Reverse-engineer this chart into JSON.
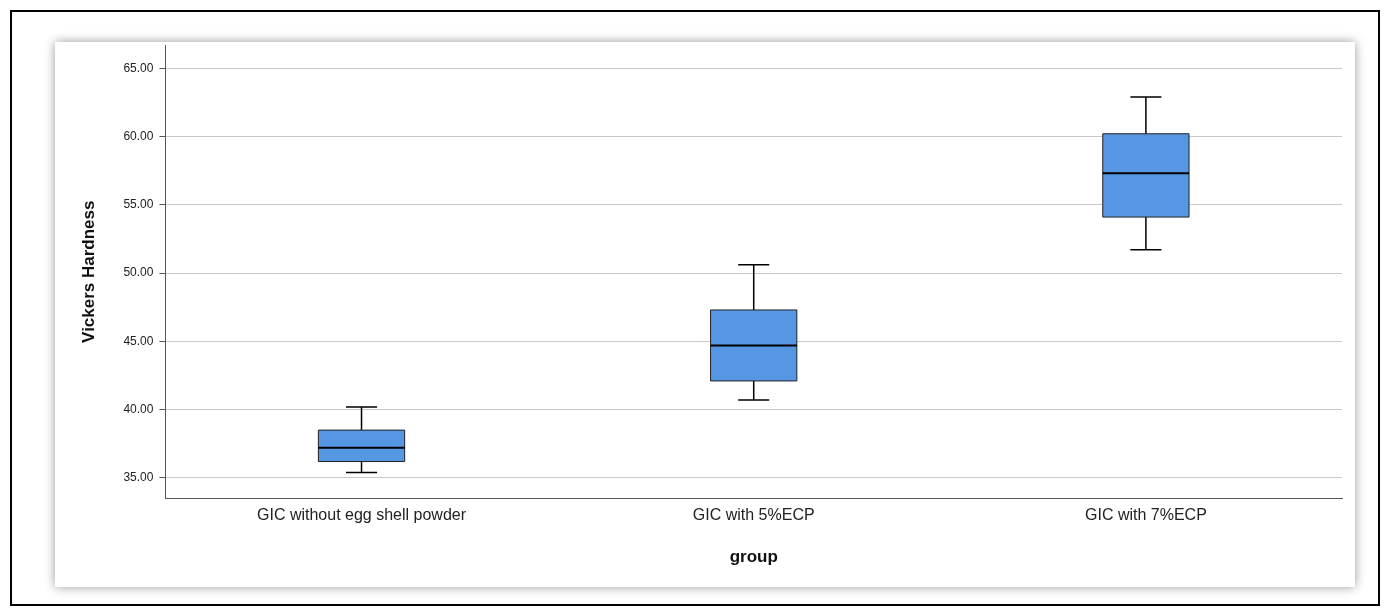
{
  "chart_data": {
    "type": "box",
    "xlabel": "group",
    "ylabel": "Vickers Hardness",
    "categories": [
      "GIC without egg shell powder",
      "GIC with 5%ECP",
      "GIC with 7%ECP"
    ],
    "color": "#5597e3",
    "boxes": [
      {
        "low": 35.4,
        "q1": 36.2,
        "median": 37.2,
        "q3": 38.5,
        "high": 40.2
      },
      {
        "low": 40.7,
        "q1": 42.1,
        "median": 44.7,
        "q3": 47.3,
        "high": 50.6
      },
      {
        "low": 51.7,
        "q1": 54.1,
        "median": 57.3,
        "q3": 60.2,
        "high": 62.9
      }
    ],
    "ylim": [
      33.5,
      66.7
    ],
    "yticks": [
      {
        "value": 35,
        "label": "35.00"
      },
      {
        "value": 40,
        "label": "40.00"
      },
      {
        "value": 45,
        "label": "45.00"
      },
      {
        "value": 50,
        "label": "50.00"
      },
      {
        "value": 55,
        "label": "55.00"
      },
      {
        "value": 60,
        "label": "60.00"
      },
      {
        "value": 65,
        "label": "65.00"
      }
    ],
    "grid": "y"
  }
}
